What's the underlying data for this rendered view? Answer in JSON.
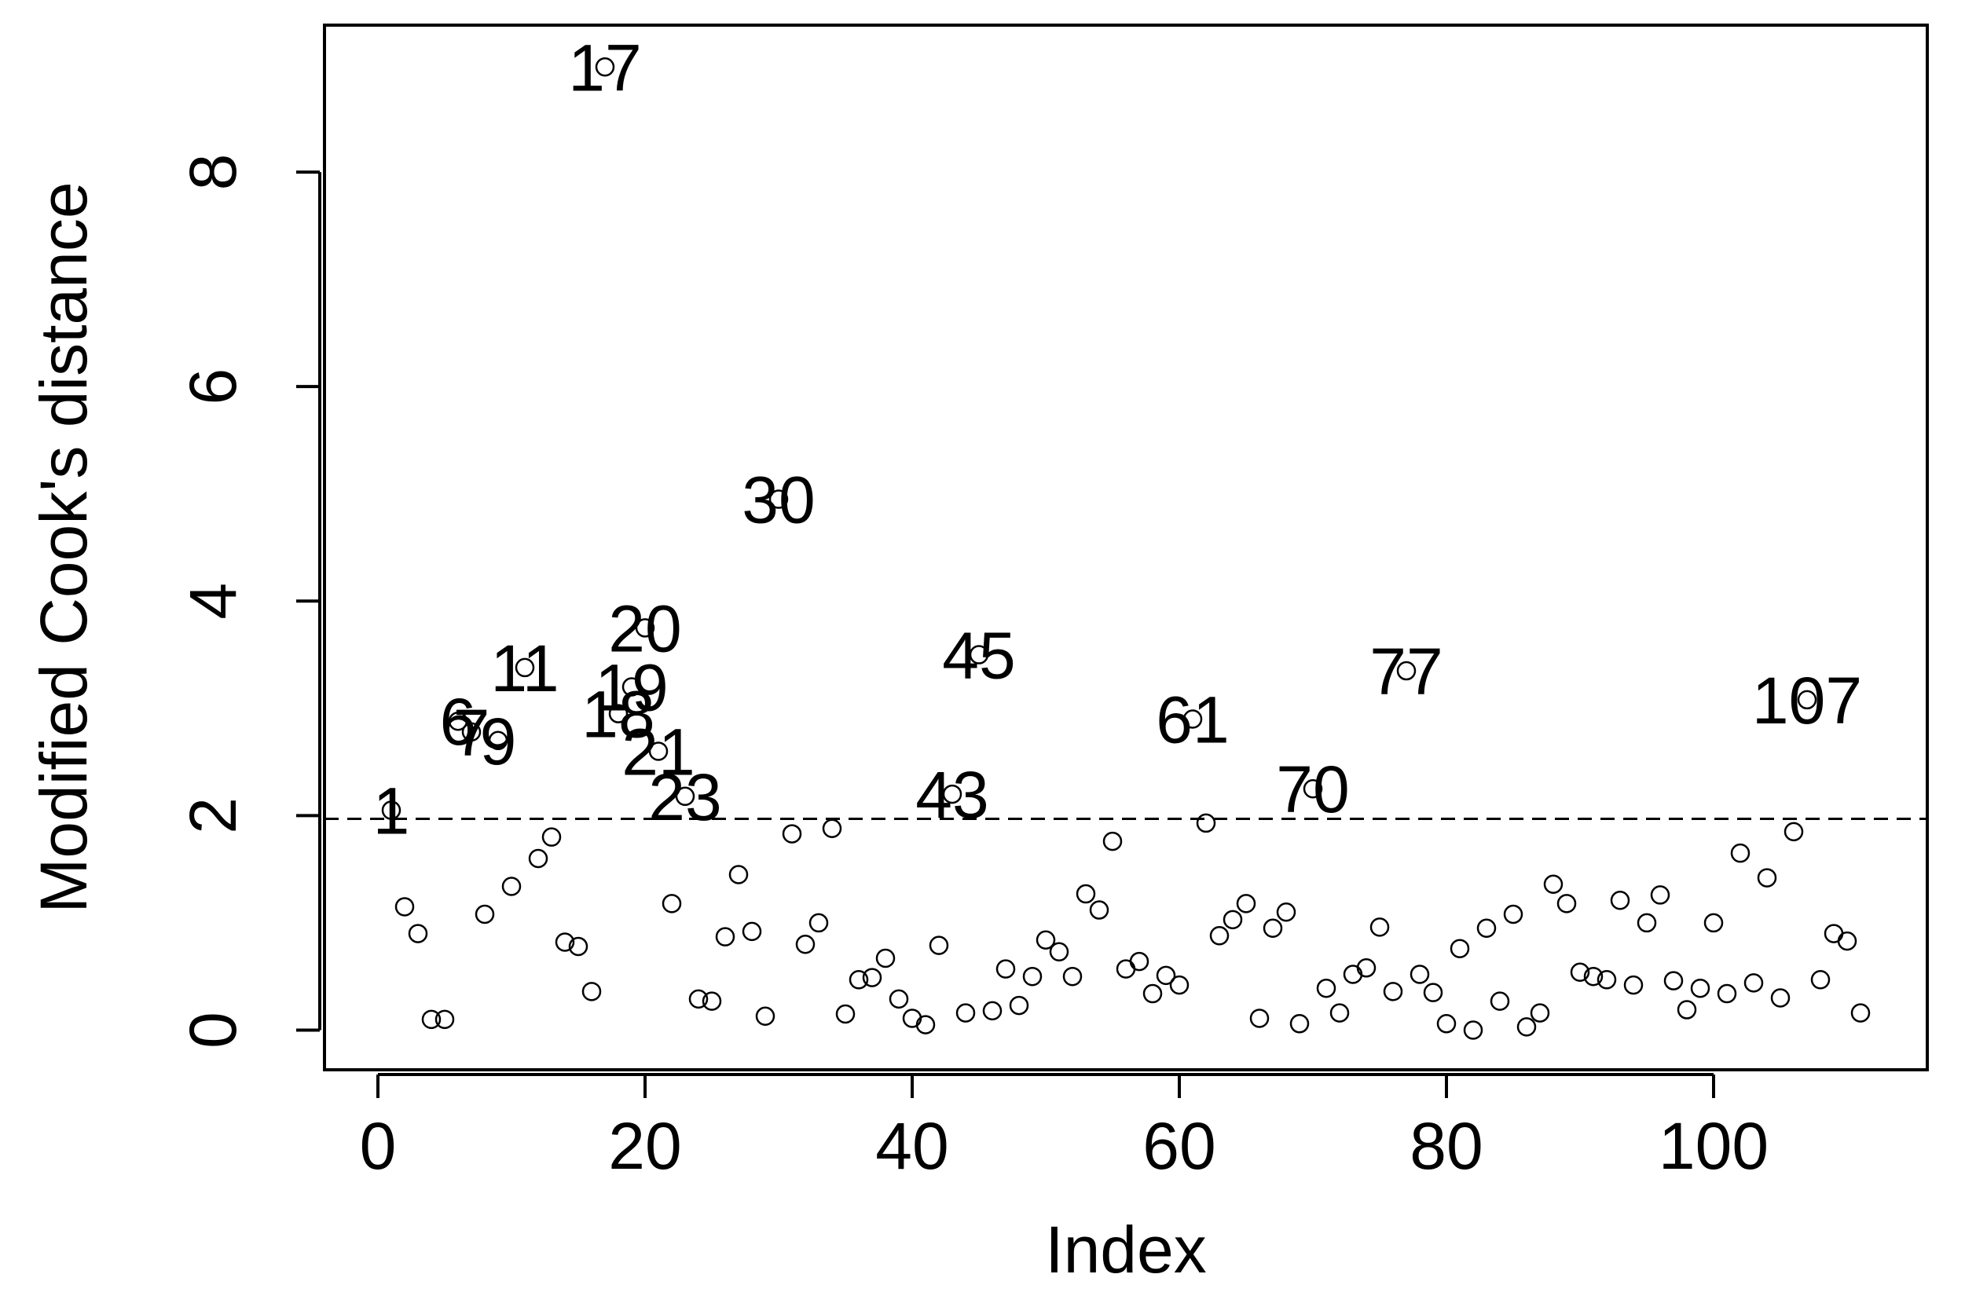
{
  "chart_data": {
    "type": "scatter",
    "xlabel": "Index",
    "ylabel": "Modified Cook's distance",
    "xlim": [
      -4,
      116
    ],
    "ylim": [
      -0.37,
      9.37
    ],
    "xticks": [
      0,
      20,
      40,
      60,
      80,
      100
    ],
    "yticks": [
      0,
      2,
      4,
      6,
      8
    ],
    "reference_line": {
      "y": 1.97,
      "style": "dashed"
    },
    "grid": false,
    "legend": "none",
    "series": [
      {
        "points": [
          {
            "x": 1,
            "y": 2.05,
            "label": "1"
          },
          {
            "x": 2,
            "y": 1.15
          },
          {
            "x": 3,
            "y": 0.9
          },
          {
            "x": 4,
            "y": 0.1
          },
          {
            "x": 5,
            "y": 0.1
          },
          {
            "x": 6,
            "y": 2.88,
            "label": "6"
          },
          {
            "x": 7,
            "y": 2.78,
            "label": "7"
          },
          {
            "x": 8,
            "y": 1.08
          },
          {
            "x": 9,
            "y": 2.7,
            "label": "9"
          },
          {
            "x": 10,
            "y": 1.34
          },
          {
            "x": 11,
            "y": 3.38,
            "label": "11"
          },
          {
            "x": 12,
            "y": 1.6
          },
          {
            "x": 13,
            "y": 1.8
          },
          {
            "x": 14,
            "y": 0.82
          },
          {
            "x": 15,
            "y": 0.78
          },
          {
            "x": 16,
            "y": 0.36
          },
          {
            "x": 17,
            "y": 8.98,
            "label": "17"
          },
          {
            "x": 18,
            "y": 2.95,
            "label": "18"
          },
          {
            "x": 19,
            "y": 3.2,
            "label": "19"
          },
          {
            "x": 20,
            "y": 3.75,
            "label": "20"
          },
          {
            "x": 21,
            "y": 2.6,
            "label": "21"
          },
          {
            "x": 22,
            "y": 1.18
          },
          {
            "x": 23,
            "y": 2.18,
            "label": "23"
          },
          {
            "x": 24,
            "y": 0.29
          },
          {
            "x": 25,
            "y": 0.27
          },
          {
            "x": 26,
            "y": 0.87
          },
          {
            "x": 27,
            "y": 1.45
          },
          {
            "x": 28,
            "y": 0.92
          },
          {
            "x": 29,
            "y": 0.13
          },
          {
            "x": 30,
            "y": 4.95,
            "label": "30"
          },
          {
            "x": 31,
            "y": 1.83
          },
          {
            "x": 32,
            "y": 0.8
          },
          {
            "x": 33,
            "y": 1.0
          },
          {
            "x": 34,
            "y": 1.88
          },
          {
            "x": 35,
            "y": 0.15
          },
          {
            "x": 36,
            "y": 0.47
          },
          {
            "x": 37,
            "y": 0.49
          },
          {
            "x": 38,
            "y": 0.67
          },
          {
            "x": 39,
            "y": 0.29
          },
          {
            "x": 40,
            "y": 0.11
          },
          {
            "x": 41,
            "y": 0.05
          },
          {
            "x": 42,
            "y": 0.79
          },
          {
            "x": 43,
            "y": 2.2,
            "label": "43"
          },
          {
            "x": 44,
            "y": 0.16
          },
          {
            "x": 45,
            "y": 3.5,
            "label": "45"
          },
          {
            "x": 46,
            "y": 0.18
          },
          {
            "x": 47,
            "y": 0.57
          },
          {
            "x": 48,
            "y": 0.23
          },
          {
            "x": 49,
            "y": 0.5
          },
          {
            "x": 50,
            "y": 0.84
          },
          {
            "x": 51,
            "y": 0.73
          },
          {
            "x": 52,
            "y": 0.5
          },
          {
            "x": 53,
            "y": 1.27
          },
          {
            "x": 54,
            "y": 1.12
          },
          {
            "x": 55,
            "y": 1.76
          },
          {
            "x": 56,
            "y": 0.57
          },
          {
            "x": 57,
            "y": 0.64
          },
          {
            "x": 58,
            "y": 0.34
          },
          {
            "x": 59,
            "y": 0.51
          },
          {
            "x": 60,
            "y": 0.42
          },
          {
            "x": 61,
            "y": 2.9,
            "label": "61"
          },
          {
            "x": 62,
            "y": 1.93
          },
          {
            "x": 63,
            "y": 0.88
          },
          {
            "x": 64,
            "y": 1.03
          },
          {
            "x": 65,
            "y": 1.18
          },
          {
            "x": 66,
            "y": 0.11
          },
          {
            "x": 67,
            "y": 0.95
          },
          {
            "x": 68,
            "y": 1.1
          },
          {
            "x": 69,
            "y": 0.06
          },
          {
            "x": 70,
            "y": 2.25,
            "label": "70"
          },
          {
            "x": 71,
            "y": 0.39
          },
          {
            "x": 72,
            "y": 0.16
          },
          {
            "x": 73,
            "y": 0.52
          },
          {
            "x": 74,
            "y": 0.58
          },
          {
            "x": 75,
            "y": 0.96
          },
          {
            "x": 76,
            "y": 0.36
          },
          {
            "x": 77,
            "y": 3.35,
            "label": "77"
          },
          {
            "x": 78,
            "y": 0.52
          },
          {
            "x": 79,
            "y": 0.35
          },
          {
            "x": 80,
            "y": 0.06
          },
          {
            "x": 81,
            "y": 0.76
          },
          {
            "x": 82,
            "y": 0.0
          },
          {
            "x": 83,
            "y": 0.95
          },
          {
            "x": 84,
            "y": 0.27
          },
          {
            "x": 85,
            "y": 1.08
          },
          {
            "x": 86,
            "y": 0.03
          },
          {
            "x": 87,
            "y": 0.16
          },
          {
            "x": 88,
            "y": 1.36
          },
          {
            "x": 89,
            "y": 1.18
          },
          {
            "x": 90,
            "y": 0.54
          },
          {
            "x": 91,
            "y": 0.5
          },
          {
            "x": 92,
            "y": 0.47
          },
          {
            "x": 93,
            "y": 1.21
          },
          {
            "x": 94,
            "y": 0.42
          },
          {
            "x": 95,
            "y": 1.0
          },
          {
            "x": 96,
            "y": 1.26
          },
          {
            "x": 97,
            "y": 0.46
          },
          {
            "x": 98,
            "y": 0.19
          },
          {
            "x": 99,
            "y": 0.39
          },
          {
            "x": 100,
            "y": 1.0
          },
          {
            "x": 101,
            "y": 0.34
          },
          {
            "x": 102,
            "y": 1.65
          },
          {
            "x": 103,
            "y": 0.44
          },
          {
            "x": 104,
            "y": 1.42
          },
          {
            "x": 105,
            "y": 0.3
          },
          {
            "x": 106,
            "y": 1.85
          },
          {
            "x": 107,
            "y": 3.08,
            "label": "107"
          },
          {
            "x": 108,
            "y": 0.47
          },
          {
            "x": 109,
            "y": 0.9
          },
          {
            "x": 110,
            "y": 0.83
          },
          {
            "x": 111,
            "y": 0.16
          }
        ]
      }
    ]
  }
}
